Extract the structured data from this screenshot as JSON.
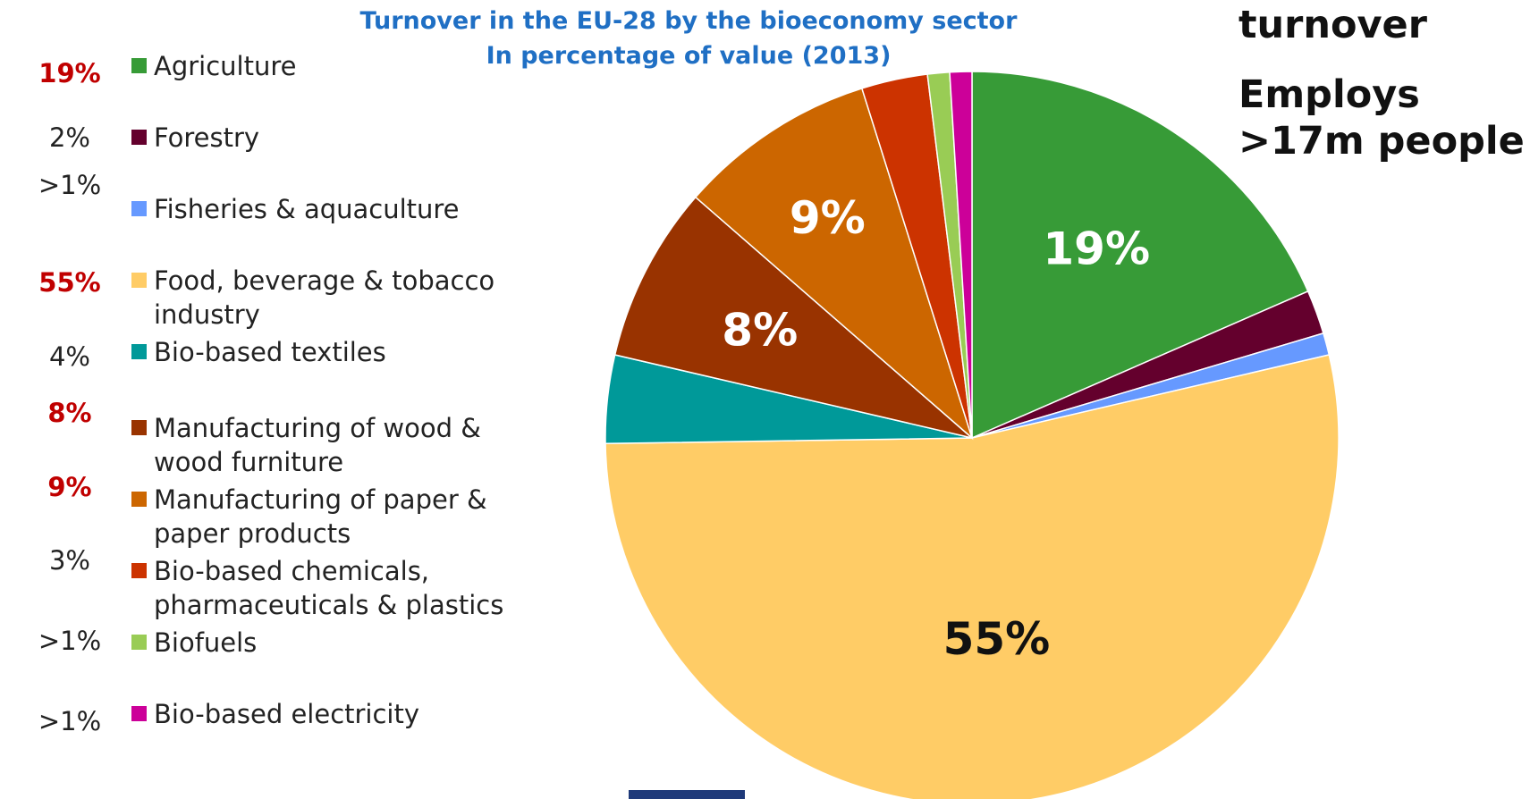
{
  "title_line1": "Turnover in the EU-28 by the bioeconomy sector",
  "title_line2": "In percentage of value (2013)",
  "side_text": {
    "line1": "turnover",
    "line2": "Employs",
    "line3": ">17m people"
  },
  "colors": {
    "title": "#1f6fc4",
    "highlight": "#c00000",
    "footer_block": "#1f3a7a"
  },
  "chart_data": {
    "type": "pie",
    "title": "Turnover in the EU-28 by the bioeconomy sector In percentage of value (2013)",
    "start_angle_deg": 0,
    "direction": "clockwise",
    "legend_position": "left",
    "slices": [
      {
        "name": "Agriculture",
        "label": "19%",
        "value": 19,
        "color": "#379b37",
        "highlight": true,
        "pie_label": "19%",
        "pie_label_color": "#ffffff"
      },
      {
        "name": "Forestry",
        "label": "2%",
        "value": 2,
        "color": "#64002d",
        "highlight": false,
        "pie_label": "",
        "pie_label_color": "#ffffff"
      },
      {
        "name": "Fisheries & aquaculture",
        "label": ">1%",
        "value": 1,
        "color": "#6699ff",
        "highlight": false,
        "pie_label": "",
        "pie_label_color": "#ffffff"
      },
      {
        "name": "Food, beverage & tobacco industry",
        "label": "55%",
        "value": 55,
        "color": "#ffcc66",
        "highlight": true,
        "pie_label": "55%",
        "pie_label_color": "#111111"
      },
      {
        "name": "Bio-based textiles",
        "label": "4%",
        "value": 4,
        "color": "#009999",
        "highlight": false,
        "pie_label": "",
        "pie_label_color": "#ffffff"
      },
      {
        "name": "Manufacturing of wood & wood furniture",
        "label": "8%",
        "value": 8,
        "color": "#993300",
        "highlight": true,
        "pie_label": "8%",
        "pie_label_color": "#ffffff"
      },
      {
        "name": "Manufacturing of paper & paper products",
        "label": "9%",
        "value": 9,
        "color": "#cc6600",
        "highlight": true,
        "pie_label": "9%",
        "pie_label_color": "#ffffff"
      },
      {
        "name": "Bio-based chemicals, pharmaceuticals & plastics",
        "label": "3%",
        "value": 3,
        "color": "#cc3300",
        "highlight": false,
        "pie_label": "",
        "pie_label_color": "#ffffff"
      },
      {
        "name": "Biofuels",
        "label": ">1%",
        "value": 1,
        "color": "#99cc55",
        "highlight": false,
        "pie_label": "",
        "pie_label_color": "#ffffff"
      },
      {
        "name": "Bio-based electricity",
        "label": ">1%",
        "value": 1,
        "color": "#cc0099",
        "highlight": false,
        "pie_label": "",
        "pie_label_color": "#ffffff"
      }
    ]
  }
}
